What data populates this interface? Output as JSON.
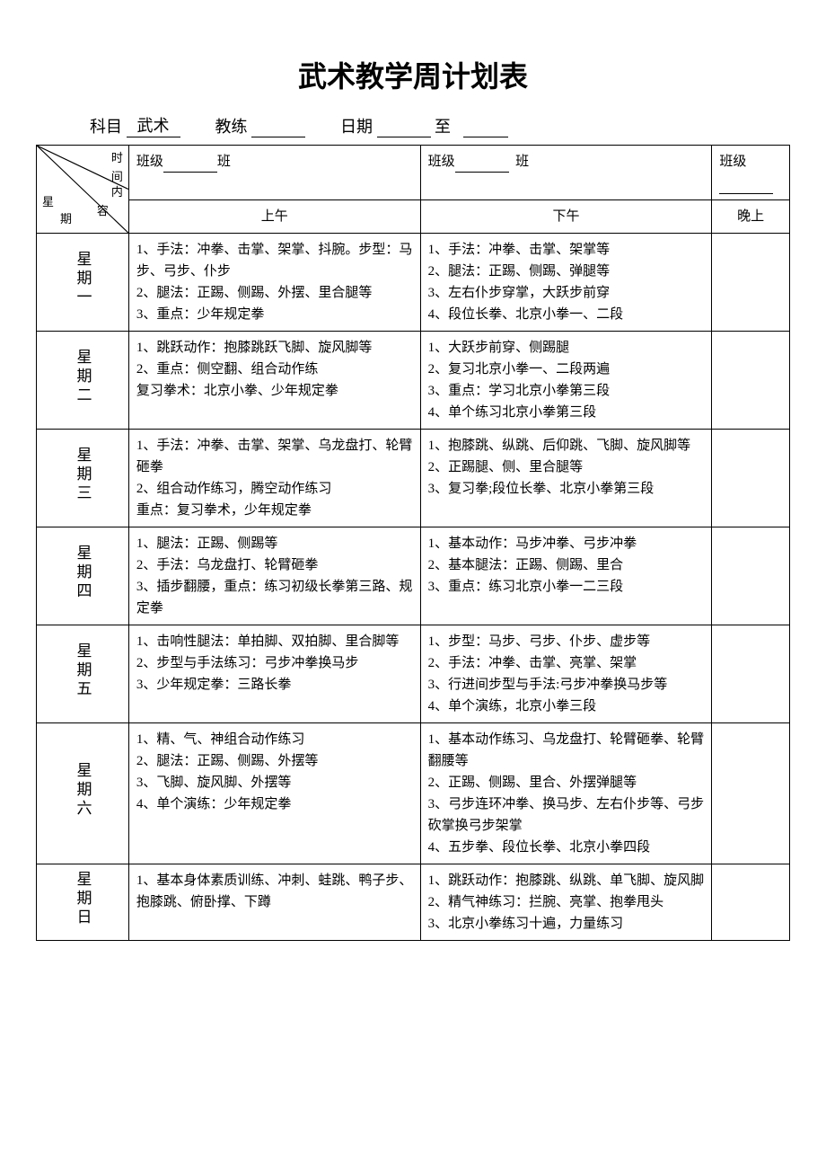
{
  "title": "武术教学周计划表",
  "header": {
    "subject_label": "科目",
    "subject_value": "武术",
    "coach_label": "教练",
    "coach_value": "",
    "date_label": "日期",
    "date_from": "",
    "date_to_label": "至",
    "date_to": ""
  },
  "diag": {
    "time": "时",
    "jian": "间",
    "week": "星",
    "qi": "期",
    "content": "内",
    "rong": "容"
  },
  "class_row": {
    "label": "班级",
    "unit": "班"
  },
  "sessions": {
    "morning": "上午",
    "afternoon": "下午",
    "evening": "晚上"
  },
  "days": [
    {
      "name": "星期一",
      "morning": "1、手法：冲拳、击掌、架掌、抖腕。步型：马步、弓步、仆步\n2、腿法：正踢、侧踢、外摆、里合腿等\n3、重点：少年规定拳",
      "afternoon": "1、手法：冲拳、击掌、架掌等\n2、腿法：正踢、侧踢、弹腿等\n3、左右仆步穿掌，大跃步前穿\n4、段位长拳、北京小拳一、二段",
      "evening": ""
    },
    {
      "name": "星期二",
      "morning": "1、跳跃动作：抱膝跳跃飞脚、旋风脚等\n2、重点：侧空翻、组合动作练\n复习拳术：北京小拳、少年规定拳",
      "afternoon": "1、大跃步前穿、侧踢腿\n2、复习北京小拳一、二段两遍\n3、重点：学习北京小拳第三段\n4、单个练习北京小拳第三段",
      "evening": ""
    },
    {
      "name": "星期三",
      "morning": "1、手法：冲拳、击掌、架掌、乌龙盘打、轮臂砸拳\n2、组合动作练习，腾空动作练习\n重点：复习拳术，少年规定拳",
      "afternoon": "1、抱膝跳、纵跳、后仰跳、飞脚、旋风脚等\n2、正踢腿、侧、里合腿等\n3、复习拳;段位长拳、北京小拳第三段",
      "evening": ""
    },
    {
      "name": "星期四",
      "morning": "1、腿法：正踢、侧踢等\n2、手法：乌龙盘打、轮臂砸拳\n3、插步翻腰，重点：练习初级长拳第三路、规定拳",
      "afternoon": "1、基本动作：马步冲拳、弓步冲拳\n2、基本腿法：正踢、侧踢、里合\n3、重点：练习北京小拳一二三段",
      "evening": ""
    },
    {
      "name": "星期五",
      "morning": "1、击响性腿法：单拍脚、双拍脚、里合脚等\n2、步型与手法练习：弓步冲拳换马步\n3、少年规定拳：三路长拳",
      "afternoon": "1、步型：马步、弓步、仆步、虚步等\n2、手法：冲拳、击掌、亮掌、架掌\n3、行进间步型与手法:弓步冲拳换马步等\n4、单个演练，北京小拳三段",
      "evening": ""
    },
    {
      "name": "星期六",
      "morning": "1、精、气、神组合动作练习\n2、腿法：正踢、侧踢、外摆等\n3、飞脚、旋风脚、外摆等\n4、单个演练：少年规定拳",
      "afternoon": "1、基本动作练习、乌龙盘打、轮臂砸拳、轮臂翻腰等\n2、正踢、侧踢、里合、外摆弹腿等\n3、弓步连环冲拳、换马步、左右仆步等、弓步砍掌换弓步架掌\n4、五步拳、段位长拳、北京小拳四段",
      "evening": ""
    },
    {
      "name": "星期日",
      "morning": "1、基本身体素质训练、冲刺、蛙跳、鸭子步、抱膝跳、俯卧撑、下蹲",
      "afternoon": "1、跳跃动作：抱膝跳、纵跳、单飞脚、旋风脚\n2、精气神练习：拦腕、亮掌、抱拳甩头\n3、北京小拳练习十遍，力量练习",
      "evening": ""
    }
  ]
}
